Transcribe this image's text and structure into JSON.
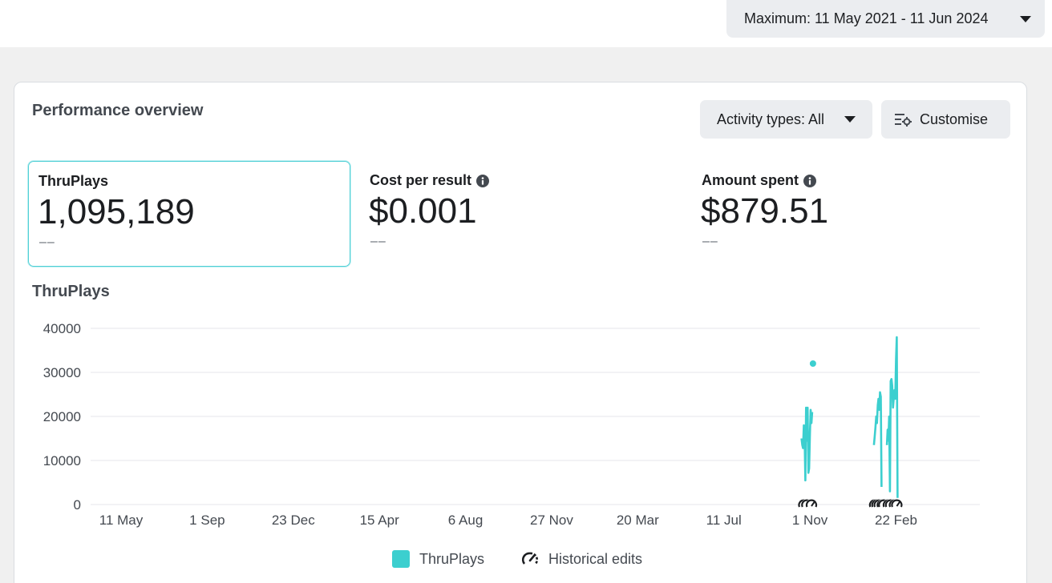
{
  "topbar": {
    "date_range": "Maximum: 11 May 2021 - 11 Jun 2024"
  },
  "card": {
    "title": "Performance overview",
    "activity_button": "Activity types: All",
    "customise_button": "Customise"
  },
  "metrics": [
    {
      "label": "ThruPlays",
      "value": "1,095,189",
      "delta": "––",
      "selected": true
    },
    {
      "label": "Cost per result",
      "value": "$0.001",
      "delta": "––",
      "selected": false
    },
    {
      "label": "Amount spent",
      "value": "$879.51",
      "delta": "––",
      "selected": false
    }
  ],
  "colors": {
    "series": "#3ccfcf",
    "grid": "#e4e6eb",
    "axis_text": "#444950",
    "selected_border": "#4fcfd5"
  },
  "chart_data": {
    "type": "line",
    "title": "ThruPlays",
    "ylim": [
      0,
      40000
    ],
    "yticks": [
      0,
      10000,
      20000,
      30000,
      40000
    ],
    "xtick_labels": [
      "11 May",
      "1 Sep",
      "23 Dec",
      "15 Apr",
      "6 Aug",
      "27 Nov",
      "20 Mar",
      "11 Jul",
      "1 Nov",
      "22 Feb"
    ],
    "xtick_dates": [
      "2021-05-11",
      "2021-09-01",
      "2021-12-23",
      "2022-04-15",
      "2022-08-06",
      "2022-11-27",
      "2023-03-20",
      "2023-07-11",
      "2023-11-01",
      "2024-02-22"
    ],
    "xlim": [
      "2021-04-01",
      "2024-06-11"
    ],
    "grid": true,
    "legend_position": "bottom",
    "series": [
      {
        "name": "ThruPlays",
        "segments": [
          [
            [
              "2023-10-21",
              15000
            ],
            [
              "2023-10-22",
              13500
            ],
            [
              "2023-10-23",
              12800
            ],
            [
              "2023-10-24",
              18000
            ],
            [
              "2023-10-25",
              16000
            ],
            [
              "2023-10-26",
              5500
            ],
            [
              "2023-10-27",
              22000
            ],
            [
              "2023-10-28",
              14500
            ],
            [
              "2023-10-29",
              22000
            ],
            [
              "2023-10-30",
              7200
            ],
            [
              "2023-10-31",
              8200
            ],
            [
              "2023-11-01",
              16000
            ],
            [
              "2023-11-02",
              21500
            ],
            [
              "2023-11-03",
              18500
            ],
            [
              "2023-11-04",
              21000
            ]
          ],
          [
            [
              "2023-11-05",
              32000
            ]
          ],
          [
            [
              "2024-01-24",
              13500
            ],
            [
              "2024-01-25",
              15500
            ],
            [
              "2024-01-26",
              17500
            ],
            [
              "2024-01-27",
              20000
            ],
            [
              "2024-01-28",
              18500
            ],
            [
              "2024-01-29",
              22500
            ],
            [
              "2024-01-30",
              24000
            ],
            [
              "2024-01-31",
              21500
            ],
            [
              "2024-02-01",
              25500
            ],
            [
              "2024-02-02",
              24500
            ],
            [
              "2024-02-03",
              4000
            ]
          ],
          [
            [
              "2024-02-10",
              13500
            ],
            [
              "2024-02-11",
              17000
            ],
            [
              "2024-02-12",
              14500
            ],
            [
              "2024-02-13",
              20000
            ],
            [
              "2024-02-14",
              3000
            ],
            [
              "2024-02-15",
              28000
            ],
            [
              "2024-02-16",
              28500
            ],
            [
              "2024-02-17",
              27000
            ],
            [
              "2024-02-18",
              22000
            ],
            [
              "2024-02-19",
              24000
            ],
            [
              "2024-02-20",
              26000
            ],
            [
              "2024-02-21",
              24000
            ],
            [
              "2024-02-22",
              33000
            ],
            [
              "2024-02-23",
              38000
            ],
            [
              "2024-02-24",
              1500
            ]
          ]
        ]
      }
    ],
    "historical_edits": [
      "2023-10-24",
      "2023-10-28",
      "2023-11-03",
      "2024-01-25",
      "2024-01-28",
      "2024-01-31",
      "2024-02-04",
      "2024-02-06",
      "2024-02-12",
      "2024-02-15",
      "2024-02-20",
      "2024-02-23"
    ],
    "legend": [
      {
        "label": "ThruPlays",
        "icon": "color-swatch"
      },
      {
        "label": "Historical edits",
        "icon": "gauge-icon"
      }
    ]
  }
}
